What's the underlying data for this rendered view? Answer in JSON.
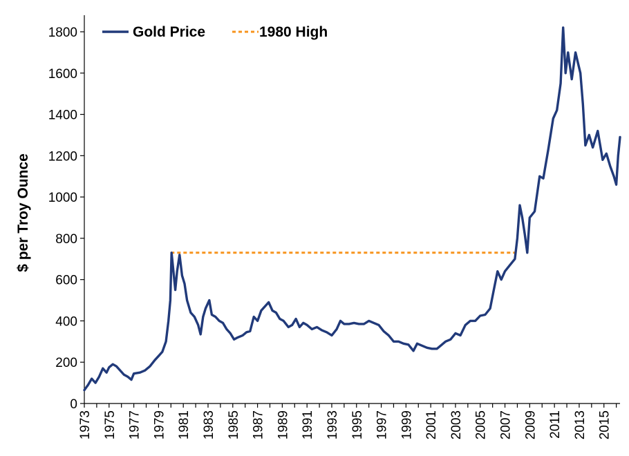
{
  "chart_data": {
    "type": "line",
    "title": "",
    "xlabel": "",
    "ylabel": "$ per Troy Ounce",
    "xlim": [
      1973,
      2016.3
    ],
    "ylim": [
      0,
      1800
    ],
    "y_ticks": [
      0,
      200,
      400,
      600,
      800,
      1000,
      1200,
      1400,
      1600,
      1800
    ],
    "x_ticks": [
      1973,
      1975,
      1977,
      1979,
      1981,
      1983,
      1985,
      1987,
      1989,
      1991,
      1993,
      1995,
      1997,
      1999,
      2001,
      2003,
      2005,
      2007,
      2009,
      2011,
      2013,
      2015
    ],
    "grid": false,
    "legend": "top-left",
    "series": [
      {
        "name": "Gold Price",
        "color": "#213a7a",
        "style": "solid",
        "points": [
          [
            1973.0,
            65
          ],
          [
            1973.3,
            90
          ],
          [
            1973.6,
            120
          ],
          [
            1973.9,
            100
          ],
          [
            1974.2,
            130
          ],
          [
            1974.5,
            170
          ],
          [
            1974.8,
            150
          ],
          [
            1975.0,
            175
          ],
          [
            1975.3,
            190
          ],
          [
            1975.6,
            180
          ],
          [
            1975.9,
            160
          ],
          [
            1976.2,
            140
          ],
          [
            1976.5,
            130
          ],
          [
            1976.8,
            115
          ],
          [
            1977.0,
            145
          ],
          [
            1977.5,
            150
          ],
          [
            1977.9,
            160
          ],
          [
            1978.3,
            180
          ],
          [
            1978.7,
            210
          ],
          [
            1979.0,
            230
          ],
          [
            1979.3,
            250
          ],
          [
            1979.6,
            300
          ],
          [
            1979.8,
            400
          ],
          [
            1979.95,
            500
          ],
          [
            1980.05,
            730
          ],
          [
            1980.2,
            640
          ],
          [
            1980.35,
            550
          ],
          [
            1980.5,
            640
          ],
          [
            1980.7,
            720
          ],
          [
            1980.9,
            620
          ],
          [
            1981.1,
            580
          ],
          [
            1981.3,
            500
          ],
          [
            1981.6,
            440
          ],
          [
            1981.9,
            420
          ],
          [
            1982.2,
            380
          ],
          [
            1982.4,
            335
          ],
          [
            1982.6,
            420
          ],
          [
            1982.8,
            460
          ],
          [
            1983.1,
            500
          ],
          [
            1983.3,
            430
          ],
          [
            1983.6,
            420
          ],
          [
            1983.9,
            400
          ],
          [
            1984.2,
            390
          ],
          [
            1984.5,
            360
          ],
          [
            1984.8,
            340
          ],
          [
            1985.1,
            310
          ],
          [
            1985.4,
            320
          ],
          [
            1985.8,
            330
          ],
          [
            1986.1,
            345
          ],
          [
            1986.4,
            350
          ],
          [
            1986.7,
            420
          ],
          [
            1987.0,
            400
          ],
          [
            1987.3,
            450
          ],
          [
            1987.6,
            470
          ],
          [
            1987.9,
            490
          ],
          [
            1988.2,
            450
          ],
          [
            1988.5,
            440
          ],
          [
            1988.8,
            410
          ],
          [
            1989.1,
            400
          ],
          [
            1989.5,
            370
          ],
          [
            1989.8,
            380
          ],
          [
            1990.1,
            410
          ],
          [
            1990.4,
            370
          ],
          [
            1990.7,
            390
          ],
          [
            1991.0,
            380
          ],
          [
            1991.4,
            360
          ],
          [
            1991.8,
            370
          ],
          [
            1992.2,
            355
          ],
          [
            1992.6,
            345
          ],
          [
            1993.0,
            330
          ],
          [
            1993.4,
            360
          ],
          [
            1993.7,
            400
          ],
          [
            1994.0,
            385
          ],
          [
            1994.4,
            385
          ],
          [
            1994.8,
            390
          ],
          [
            1995.2,
            385
          ],
          [
            1995.6,
            385
          ],
          [
            1996.0,
            400
          ],
          [
            1996.4,
            390
          ],
          [
            1996.8,
            380
          ],
          [
            1997.2,
            350
          ],
          [
            1997.6,
            330
          ],
          [
            1998.0,
            300
          ],
          [
            1998.4,
            300
          ],
          [
            1998.8,
            290
          ],
          [
            1999.2,
            285
          ],
          [
            1999.6,
            255
          ],
          [
            1999.9,
            290
          ],
          [
            2000.3,
            280
          ],
          [
            2000.7,
            270
          ],
          [
            2001.1,
            265
          ],
          [
            2001.5,
            265
          ],
          [
            2001.8,
            280
          ],
          [
            2002.2,
            300
          ],
          [
            2002.6,
            310
          ],
          [
            2003.0,
            340
          ],
          [
            2003.4,
            330
          ],
          [
            2003.8,
            380
          ],
          [
            2004.2,
            400
          ],
          [
            2004.6,
            400
          ],
          [
            2005.0,
            425
          ],
          [
            2005.4,
            430
          ],
          [
            2005.8,
            460
          ],
          [
            2006.1,
            550
          ],
          [
            2006.4,
            640
          ],
          [
            2006.7,
            600
          ],
          [
            2007.0,
            640
          ],
          [
            2007.4,
            670
          ],
          [
            2007.8,
            700
          ],
          [
            2008.0,
            800
          ],
          [
            2008.2,
            960
          ],
          [
            2008.4,
            900
          ],
          [
            2008.6,
            820
          ],
          [
            2008.8,
            730
          ],
          [
            2009.0,
            900
          ],
          [
            2009.4,
            930
          ],
          [
            2009.8,
            1100
          ],
          [
            2010.1,
            1090
          ],
          [
            2010.5,
            1230
          ],
          [
            2010.9,
            1380
          ],
          [
            2011.2,
            1420
          ],
          [
            2011.5,
            1550
          ],
          [
            2011.7,
            1820
          ],
          [
            2011.9,
            1600
          ],
          [
            2012.1,
            1700
          ],
          [
            2012.4,
            1570
          ],
          [
            2012.7,
            1700
          ],
          [
            2012.9,
            1650
          ],
          [
            2013.1,
            1600
          ],
          [
            2013.3,
            1450
          ],
          [
            2013.5,
            1250
          ],
          [
            2013.8,
            1300
          ],
          [
            2014.1,
            1240
          ],
          [
            2014.5,
            1320
          ],
          [
            2014.9,
            1180
          ],
          [
            2015.2,
            1210
          ],
          [
            2015.5,
            1150
          ],
          [
            2015.8,
            1100
          ],
          [
            2016.0,
            1060
          ],
          [
            2016.15,
            1200
          ],
          [
            2016.3,
            1290
          ]
        ]
      },
      {
        "name": "1980 High",
        "color": "#f7941d",
        "style": "dashed",
        "points": [
          [
            1980.0,
            730
          ],
          [
            2007.9,
            730
          ]
        ]
      }
    ]
  }
}
